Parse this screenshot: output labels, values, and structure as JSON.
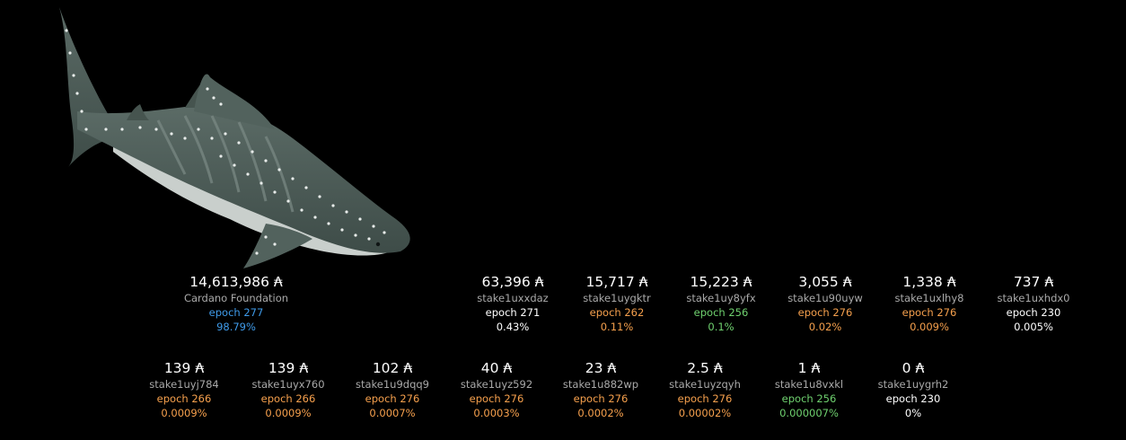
{
  "colors": {
    "background": "#000000",
    "white": "#ffffff",
    "orange": "#f6a04d",
    "green": "#6fd16f",
    "blue": "#3f9bea",
    "address_gray": "#a9a9a9",
    "shark_body": "#4a5a55",
    "shark_belly": "#c9cfcc"
  },
  "illustration": {
    "icon": "whale-shark-icon"
  },
  "holders": [
    {
      "amount": "14,613,986 ₳",
      "address": "Cardano Foundation",
      "epoch": "epoch 277",
      "percent": "98.79%",
      "color": "blue"
    },
    {
      "amount": "63,396 ₳",
      "address": "stake1uxxdaz",
      "epoch": "epoch 271",
      "percent": "0.43%",
      "color": "white"
    },
    {
      "amount": "15,717 ₳",
      "address": "stake1uygktr",
      "epoch": "epoch 262",
      "percent": "0.11%",
      "color": "orange"
    },
    {
      "amount": "15,223 ₳",
      "address": "stake1uy8yfx",
      "epoch": "epoch 256",
      "percent": "0.1%",
      "color": "green"
    },
    {
      "amount": "3,055 ₳",
      "address": "stake1u90uyw",
      "epoch": "epoch 276",
      "percent": "0.02%",
      "color": "orange"
    },
    {
      "amount": "1,338 ₳",
      "address": "stake1uxlhy8",
      "epoch": "epoch 276",
      "percent": "0.009%",
      "color": "orange"
    },
    {
      "amount": "737 ₳",
      "address": "stake1uxhdx0",
      "epoch": "epoch 230",
      "percent": "0.005%",
      "color": "white"
    },
    {
      "amount": "139 ₳",
      "address": "stake1uyj784",
      "epoch": "epoch 266",
      "percent": "0.0009%",
      "color": "orange"
    },
    {
      "amount": "139 ₳",
      "address": "stake1uyx760",
      "epoch": "epoch 266",
      "percent": "0.0009%",
      "color": "orange"
    },
    {
      "amount": "102 ₳",
      "address": "stake1u9dqq9",
      "epoch": "epoch 276",
      "percent": "0.0007%",
      "color": "orange"
    },
    {
      "amount": "40 ₳",
      "address": "stake1uyz592",
      "epoch": "epoch 276",
      "percent": "0.0003%",
      "color": "orange"
    },
    {
      "amount": "23 ₳",
      "address": "stake1u882wp",
      "epoch": "epoch 276",
      "percent": "0.0002%",
      "color": "orange"
    },
    {
      "amount": "2.5 ₳",
      "address": "stake1uyzqyh",
      "epoch": "epoch 276",
      "percent": "0.00002%",
      "color": "orange"
    },
    {
      "amount": "1 ₳",
      "address": "stake1u8vxkl",
      "epoch": "epoch 256",
      "percent": "0.000007%",
      "color": "green"
    },
    {
      "amount": "0 ₳",
      "address": "stake1uygrh2",
      "epoch": "epoch 230",
      "percent": "0%",
      "color": "white"
    }
  ]
}
